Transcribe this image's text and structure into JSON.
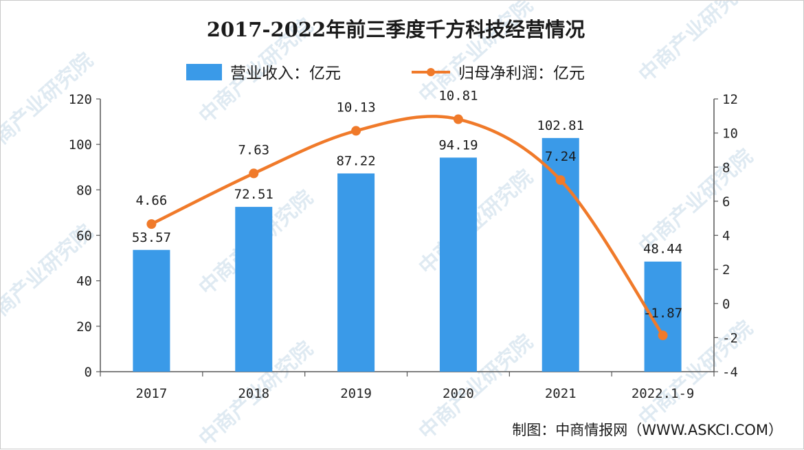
{
  "chart_data": {
    "type": "bar+line",
    "title": "2017-2022年前三季度千方科技经营情况",
    "categories": [
      "2017",
      "2018",
      "2019",
      "2020",
      "2021",
      "2022.1-9"
    ],
    "series": [
      {
        "name": "营业收入：亿元",
        "type": "bar",
        "axis": "left",
        "color": "#3a9ae8",
        "values": [
          53.57,
          72.51,
          87.22,
          94.19,
          102.81,
          48.44
        ],
        "labels": [
          "53.57",
          "72.51",
          "87.22",
          "94.19",
          "102.81",
          "48.44"
        ]
      },
      {
        "name": "归母净利润：亿元",
        "type": "line",
        "axis": "right",
        "color": "#f07a2a",
        "values": [
          4.66,
          7.63,
          10.13,
          10.81,
          7.24,
          -1.87
        ],
        "labels": [
          "4.66",
          "7.63",
          "10.13",
          "10.81",
          "7.24",
          "-1.87"
        ]
      }
    ],
    "y_left": {
      "min": 0,
      "max": 120,
      "ticks": [
        "0",
        "20",
        "40",
        "60",
        "80",
        "100",
        "120"
      ]
    },
    "y_right": {
      "min": -4,
      "max": 12,
      "ticks": [
        "-4",
        "-2",
        "0",
        "2",
        "4",
        "6",
        "8",
        "10",
        "12"
      ]
    },
    "grid": false,
    "legend_position": "top"
  },
  "source": "制图：中商情报网（WWW.ASKCI.COM）",
  "watermark": "中商产业研究院"
}
